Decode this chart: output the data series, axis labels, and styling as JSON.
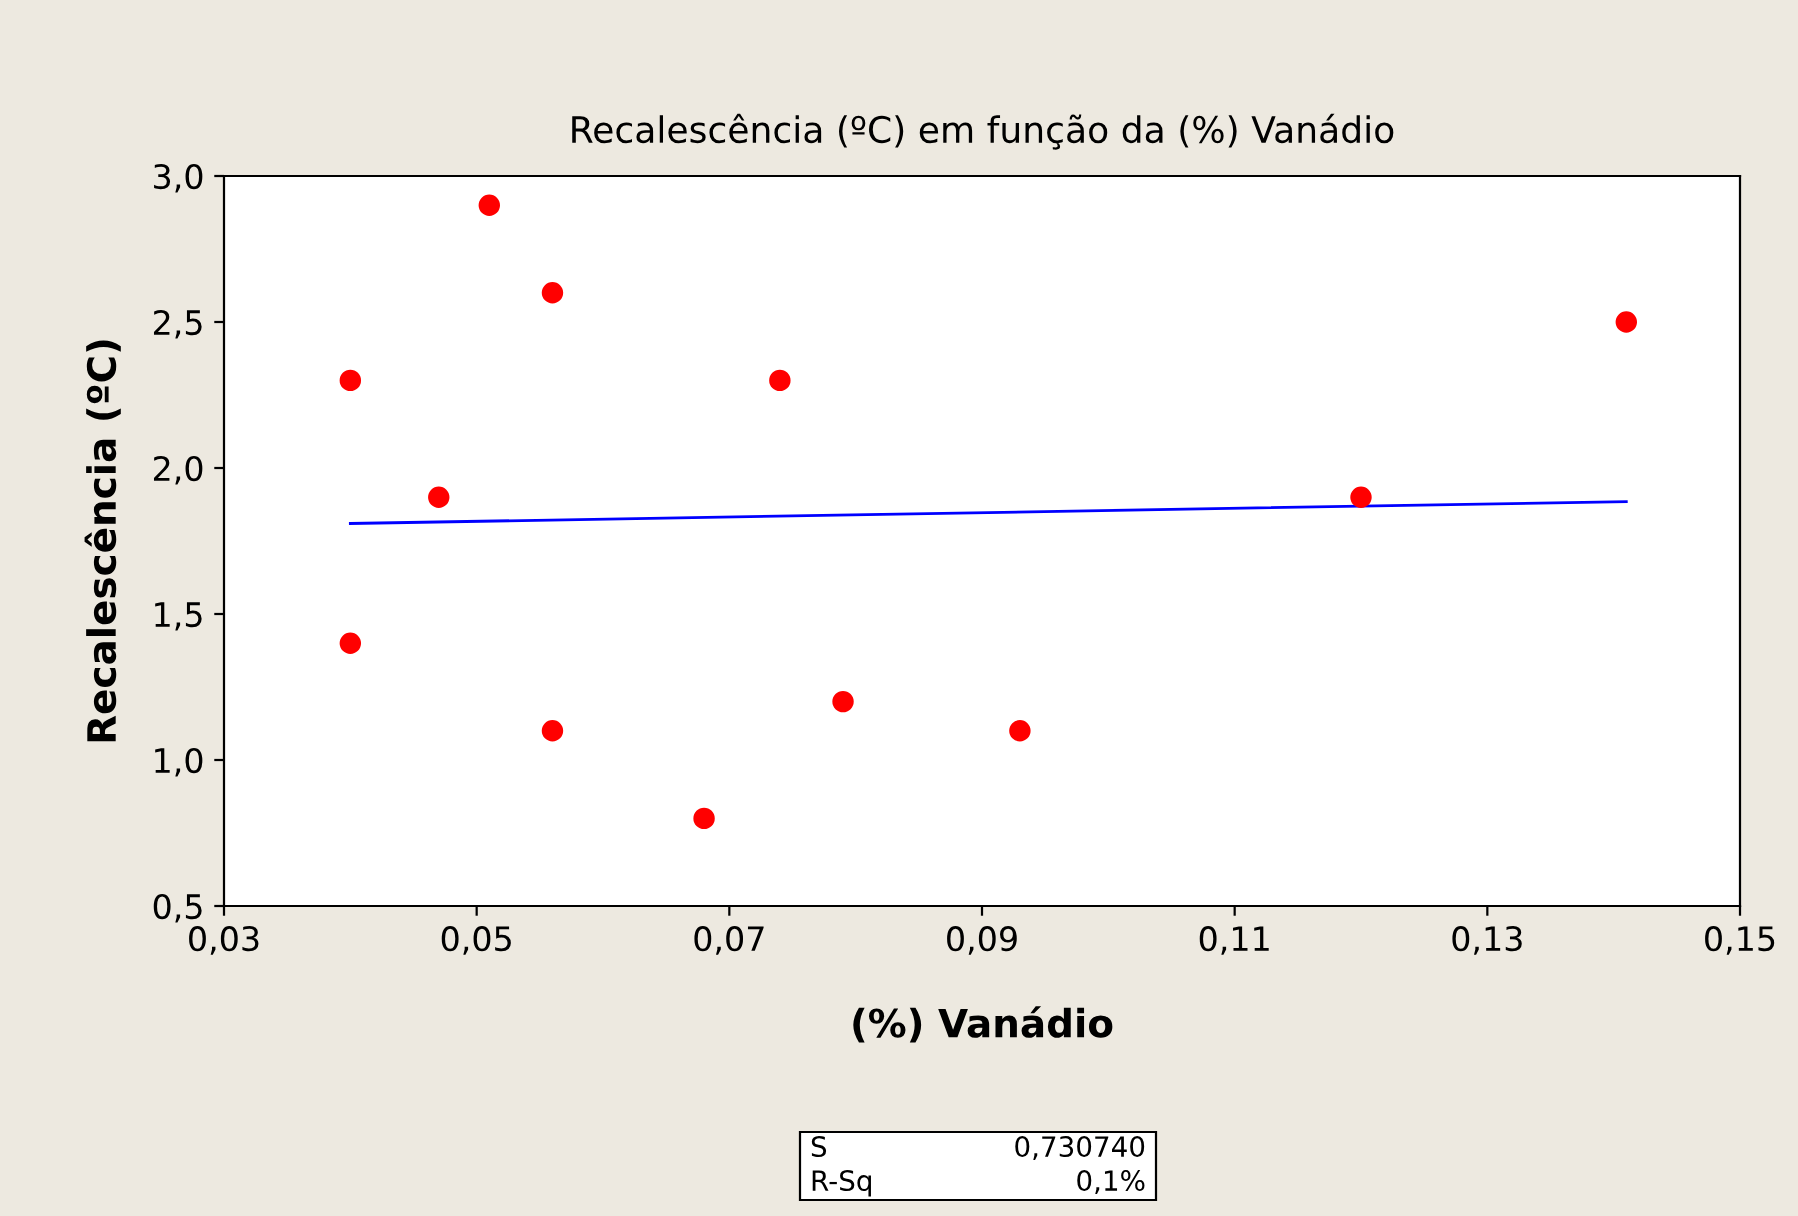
{
  "chart_data": {
    "type": "scatter",
    "title": "Recalescência (ºC) em função da (%) Vanádio",
    "xlabel": "(%) Vanádio",
    "ylabel": "Recalescência (ºC)",
    "series": [
      {
        "color": "#ff0000",
        "marker": "circle",
        "x": [
          0.04,
          0.04,
          0.047,
          0.051,
          0.056,
          0.056,
          0.068,
          0.074,
          0.079,
          0.093,
          0.12,
          0.141
        ],
        "values": [
          2.3,
          1.4,
          1.9,
          2.9,
          2.6,
          1.1,
          0.8,
          2.3,
          1.2,
          1.1,
          1.9,
          2.5
        ]
      },
      {
        "type": "line",
        "color": "#0000ff",
        "marker": "none",
        "line_style": "solid",
        "x": [
          0.04,
          0.141
        ],
        "values": [
          1.81,
          1.885
        ]
      }
    ],
    "xlim": [
      0.03,
      0.15
    ],
    "xticks": [
      {
        "value": 0.03,
        "label": "0,03"
      },
      {
        "value": 0.05,
        "label": "0,05"
      },
      {
        "value": 0.07,
        "label": "0,07"
      },
      {
        "value": 0.09,
        "label": "0,09"
      },
      {
        "value": 0.11,
        "label": "0,11"
      },
      {
        "value": 0.13,
        "label": "0,13"
      },
      {
        "value": 0.15,
        "label": "0,15"
      }
    ],
    "ylim": [
      0.5,
      3.0
    ],
    "yticks": [
      {
        "value": 0.5,
        "label": "0,5"
      },
      {
        "value": 1.0,
        "label": "1,0"
      },
      {
        "value": 1.5,
        "label": "1,5"
      },
      {
        "value": 2.0,
        "label": "2,0"
      },
      {
        "value": 2.5,
        "label": "2,5"
      },
      {
        "value": 3.0,
        "label": "3,0"
      }
    ],
    "grid": false,
    "legend": false,
    "annotations": [
      "S",
      "0,730740",
      "R-Sq",
      "0,1%"
    ]
  }
}
